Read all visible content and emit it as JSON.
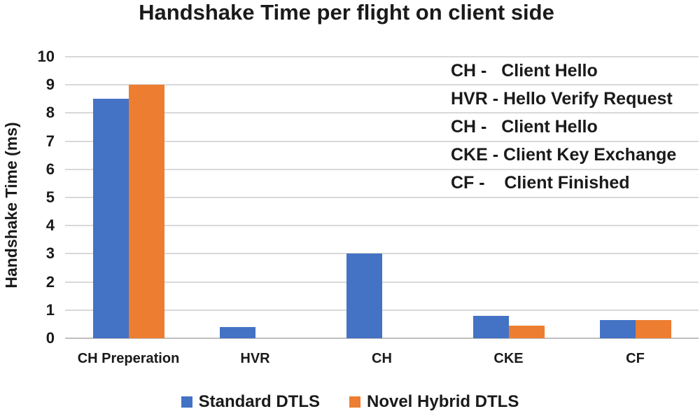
{
  "chart_data": {
    "type": "bar",
    "title": "Handshake Time per flight on client side",
    "categories": [
      "CH Preperation",
      "HVR",
      "CH",
      "CKE",
      "CF"
    ],
    "series": [
      {
        "name": "Standard DTLS",
        "color": "#4472C4",
        "values": [
          8.5,
          0.4,
          3.0,
          0.8,
          0.65
        ]
      },
      {
        "name": "Novel Hybrid DTLS",
        "color": "#ED7D31",
        "values": [
          9.0,
          0,
          0,
          0.45,
          0.65
        ]
      }
    ],
    "xlabel": "",
    "ylabel": "Handshake Time (ms)",
    "ylim": [
      0,
      10
    ],
    "ytick_step": 1,
    "grid": true,
    "gridline_color": "#d9d9d9",
    "axis_line_color": "#bfbfbf",
    "legend_position": "bottom"
  },
  "annotation": {
    "lines": [
      "CH -   Client Hello",
      "HVR - Hello Verify Request",
      "CH -   Client Hello",
      "CKE - Client Key Exchange",
      "CF -    Client Finished"
    ]
  }
}
